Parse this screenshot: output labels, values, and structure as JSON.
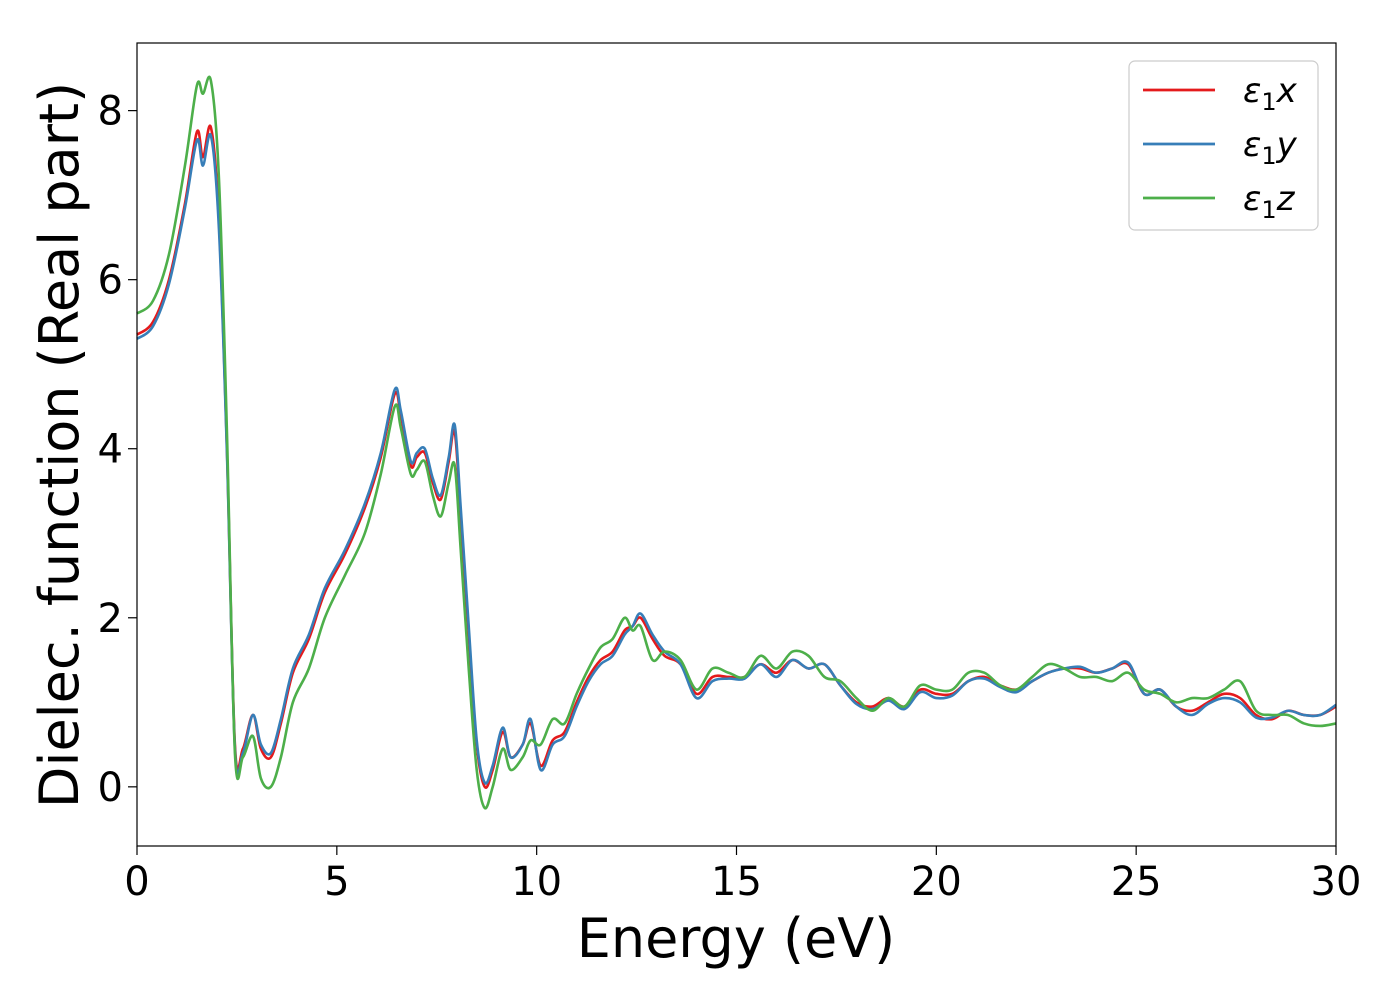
{
  "chart_data": {
    "type": "line",
    "title": "",
    "xlabel": "Energy (eV)",
    "ylabel": "Dielec. function (Real part)",
    "xlim": [
      0,
      30
    ],
    "ylim": [
      -0.7,
      8.8
    ],
    "xticks": [
      0,
      5,
      10,
      15,
      20,
      25,
      30
    ],
    "yticks": [
      0,
      2,
      4,
      6,
      8
    ],
    "grid": false,
    "legend_position": "top-right",
    "series": [
      {
        "name": "ε₁x",
        "name_base": "ε",
        "name_sub": "1",
        "name_var": "x",
        "color": "#e41a1c",
        "x": [
          0,
          0.4,
          0.8,
          1.2,
          1.5,
          1.65,
          1.85,
          2.05,
          2.25,
          2.45,
          2.65,
          2.9,
          3.1,
          3.35,
          3.6,
          3.9,
          4.3,
          4.7,
          5.2,
          5.7,
          6.1,
          6.45,
          6.6,
          6.85,
          7.0,
          7.2,
          7.4,
          7.6,
          7.8,
          7.95,
          8.1,
          8.3,
          8.5,
          8.7,
          8.9,
          9.15,
          9.35,
          9.65,
          9.85,
          10.1,
          10.4,
          10.7,
          11.0,
          11.3,
          11.6,
          11.9,
          12.2,
          12.4,
          12.6,
          12.9,
          13.2,
          13.6,
          14.0,
          14.4,
          14.8,
          15.2,
          15.6,
          16.0,
          16.4,
          16.8,
          17.2,
          17.6,
          18.0,
          18.4,
          18.8,
          19.2,
          19.6,
          20.0,
          20.4,
          20.8,
          21.2,
          21.6,
          22.0,
          22.4,
          22.8,
          23.2,
          23.6,
          24.0,
          24.4,
          24.8,
          25.2,
          25.6,
          26.0,
          26.4,
          26.8,
          27.2,
          27.6,
          28.0,
          28.4,
          28.8,
          29.2,
          29.6,
          30.0
        ],
        "y": [
          5.35,
          5.5,
          6.0,
          6.9,
          7.75,
          7.45,
          7.8,
          6.7,
          4.0,
          0.5,
          0.45,
          0.85,
          0.45,
          0.35,
          0.75,
          1.35,
          1.75,
          2.3,
          2.75,
          3.3,
          3.9,
          4.65,
          4.4,
          3.8,
          3.9,
          3.95,
          3.6,
          3.4,
          3.85,
          4.2,
          3.2,
          1.8,
          0.5,
          0.0,
          0.2,
          0.65,
          0.35,
          0.5,
          0.75,
          0.25,
          0.55,
          0.65,
          1.0,
          1.3,
          1.5,
          1.6,
          1.85,
          1.9,
          2.0,
          1.75,
          1.55,
          1.45,
          1.1,
          1.3,
          1.3,
          1.3,
          1.45,
          1.35,
          1.5,
          1.4,
          1.45,
          1.2,
          1.0,
          0.95,
          1.05,
          0.95,
          1.15,
          1.1,
          1.1,
          1.25,
          1.3,
          1.2,
          1.15,
          1.25,
          1.35,
          1.4,
          1.4,
          1.35,
          1.4,
          1.45,
          1.1,
          1.15,
          0.95,
          0.9,
          1.0,
          1.1,
          1.05,
          0.85,
          0.8,
          0.9,
          0.85,
          0.85,
          0.95
        ]
      },
      {
        "name": "ε₁y",
        "name_base": "ε",
        "name_sub": "1",
        "name_var": "y",
        "color": "#377eb8",
        "x": [
          0,
          0.4,
          0.8,
          1.2,
          1.5,
          1.65,
          1.85,
          2.05,
          2.25,
          2.45,
          2.65,
          2.9,
          3.1,
          3.35,
          3.6,
          3.9,
          4.3,
          4.7,
          5.2,
          5.7,
          6.1,
          6.45,
          6.6,
          6.85,
          7.0,
          7.2,
          7.4,
          7.6,
          7.8,
          7.95,
          8.1,
          8.3,
          8.5,
          8.7,
          8.9,
          9.15,
          9.35,
          9.65,
          9.85,
          10.1,
          10.4,
          10.7,
          11.0,
          11.3,
          11.6,
          11.9,
          12.2,
          12.4,
          12.6,
          12.9,
          13.2,
          13.6,
          14.0,
          14.4,
          14.8,
          15.2,
          15.6,
          16.0,
          16.4,
          16.8,
          17.2,
          17.6,
          18.0,
          18.4,
          18.8,
          19.2,
          19.6,
          20.0,
          20.4,
          20.8,
          21.2,
          21.6,
          22.0,
          22.4,
          22.8,
          23.2,
          23.6,
          24.0,
          24.4,
          24.8,
          25.2,
          25.6,
          26.0,
          26.4,
          26.8,
          27.2,
          27.6,
          28.0,
          28.4,
          28.8,
          29.2,
          29.6,
          30.0
        ],
        "y": [
          5.3,
          5.45,
          5.95,
          6.85,
          7.65,
          7.35,
          7.7,
          6.6,
          3.95,
          0.45,
          0.4,
          0.85,
          0.5,
          0.4,
          0.8,
          1.4,
          1.8,
          2.35,
          2.8,
          3.35,
          3.95,
          4.7,
          4.45,
          3.85,
          3.95,
          4.0,
          3.65,
          3.45,
          3.9,
          4.28,
          3.3,
          1.9,
          0.55,
          0.05,
          0.25,
          0.7,
          0.35,
          0.5,
          0.8,
          0.2,
          0.5,
          0.6,
          0.95,
          1.25,
          1.45,
          1.55,
          1.8,
          1.9,
          2.05,
          1.8,
          1.6,
          1.45,
          1.05,
          1.25,
          1.28,
          1.28,
          1.45,
          1.3,
          1.5,
          1.4,
          1.45,
          1.2,
          0.98,
          0.92,
          1.02,
          0.92,
          1.12,
          1.05,
          1.08,
          1.25,
          1.28,
          1.18,
          1.12,
          1.25,
          1.35,
          1.4,
          1.42,
          1.35,
          1.4,
          1.47,
          1.1,
          1.15,
          0.95,
          0.85,
          0.98,
          1.05,
          1.0,
          0.82,
          0.82,
          0.9,
          0.85,
          0.85,
          0.97
        ]
      },
      {
        "name": "ε₁z",
        "name_base": "ε",
        "name_sub": "1",
        "name_var": "z",
        "color": "#4daf4a",
        "x": [
          0,
          0.4,
          0.8,
          1.2,
          1.5,
          1.65,
          1.85,
          2.05,
          2.25,
          2.45,
          2.65,
          2.9,
          3.1,
          3.35,
          3.6,
          3.9,
          4.3,
          4.7,
          5.2,
          5.7,
          6.1,
          6.45,
          6.6,
          6.85,
          7.0,
          7.2,
          7.4,
          7.6,
          7.8,
          7.95,
          8.1,
          8.3,
          8.5,
          8.7,
          8.9,
          9.15,
          9.35,
          9.65,
          9.85,
          10.1,
          10.4,
          10.7,
          11.0,
          11.3,
          11.6,
          11.9,
          12.2,
          12.4,
          12.6,
          12.9,
          13.2,
          13.6,
          14.0,
          14.4,
          14.8,
          15.2,
          15.6,
          16.0,
          16.4,
          16.8,
          17.2,
          17.6,
          18.0,
          18.4,
          18.8,
          19.2,
          19.6,
          20.0,
          20.4,
          20.8,
          21.2,
          21.6,
          22.0,
          22.4,
          22.8,
          23.2,
          23.6,
          24.0,
          24.4,
          24.8,
          25.2,
          25.6,
          26.0,
          26.4,
          26.8,
          27.2,
          27.6,
          28.0,
          28.4,
          28.8,
          29.2,
          29.6,
          30.0
        ],
        "y": [
          5.6,
          5.75,
          6.3,
          7.35,
          8.3,
          8.2,
          8.35,
          7.2,
          4.2,
          0.4,
          0.35,
          0.6,
          0.1,
          0.0,
          0.35,
          1.0,
          1.4,
          2.0,
          2.5,
          3.0,
          3.7,
          4.5,
          4.25,
          3.7,
          3.75,
          3.85,
          3.45,
          3.2,
          3.6,
          3.8,
          2.8,
          1.4,
          0.2,
          -0.25,
          0.0,
          0.45,
          0.2,
          0.35,
          0.55,
          0.5,
          0.8,
          0.75,
          1.1,
          1.4,
          1.65,
          1.75,
          2.0,
          1.85,
          1.9,
          1.5,
          1.6,
          1.5,
          1.15,
          1.4,
          1.35,
          1.3,
          1.55,
          1.4,
          1.6,
          1.55,
          1.3,
          1.25,
          1.05,
          0.9,
          1.05,
          0.95,
          1.2,
          1.15,
          1.15,
          1.35,
          1.35,
          1.2,
          1.15,
          1.3,
          1.45,
          1.4,
          1.3,
          1.3,
          1.25,
          1.35,
          1.15,
          1.1,
          1.0,
          1.05,
          1.05,
          1.15,
          1.25,
          0.9,
          0.85,
          0.85,
          0.75,
          0.72,
          0.75
        ]
      }
    ]
  }
}
